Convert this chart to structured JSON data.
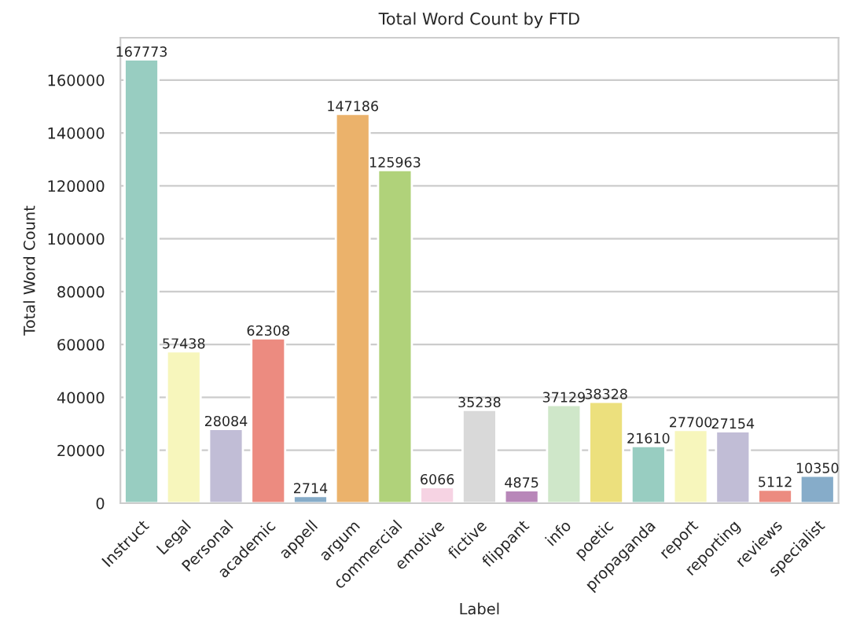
{
  "chart_data": {
    "type": "bar",
    "title": "Total Word Count by FTD",
    "xlabel": "Label",
    "ylabel": "Total Word Count",
    "categories": [
      "Instruct",
      "Legal",
      "Personal",
      "academic",
      "appell",
      "argum",
      "commercial",
      "emotive",
      "fictive",
      "flippant",
      "info",
      "poetic",
      "propaganda",
      "report",
      "reporting",
      "reviews",
      "specialist"
    ],
    "values": [
      167773,
      57438,
      28084,
      62308,
      2714,
      147186,
      125963,
      6066,
      35238,
      4875,
      37129,
      38328,
      21610,
      27700,
      27154,
      5112,
      10350
    ],
    "colors": [
      "#98cdc1",
      "#f7f6bc",
      "#c1bdd6",
      "#ec8b80",
      "#86acc9",
      "#ebb26b",
      "#b0d27a",
      "#f6d3e3",
      "#d9d9d9",
      "#b887b9",
      "#cfe7c9",
      "#ece07d",
      "#98cdc1",
      "#f7f6bc",
      "#c1bdd6",
      "#ec8b80",
      "#86acc9"
    ],
    "ylim": [
      0,
      176000
    ],
    "yticks": [
      0,
      20000,
      40000,
      60000,
      80000,
      100000,
      120000,
      140000,
      160000
    ],
    "grid": "y",
    "data_labels": true
  }
}
